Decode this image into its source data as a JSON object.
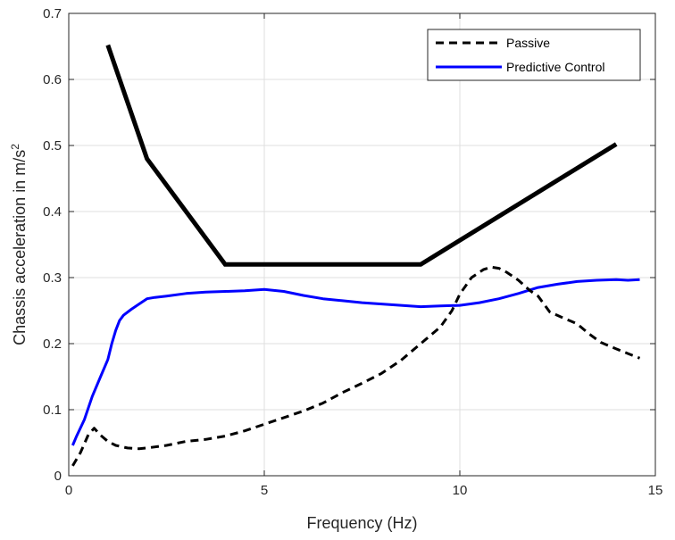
{
  "chart_data": {
    "type": "line",
    "xlabel": "Frequency (Hz)",
    "ylabel_main": "Chassis acceleration in m/s",
    "ylabel_sup": "2",
    "xlim": [
      0,
      15
    ],
    "ylim": [
      0,
      0.7
    ],
    "grid": true,
    "legend_position": "top-right",
    "xticks": [
      0,
      5,
      10,
      15
    ],
    "xtick_labels": [
      "0",
      "5",
      "10",
      "15"
    ],
    "yticks": [
      0,
      0.1,
      0.2,
      0.3,
      0.4,
      0.5,
      0.6,
      0.7
    ],
    "ytick_labels": [
      "0",
      "0.1",
      "0.2",
      "0.3",
      "0.4",
      "0.5",
      "0.6",
      "0.7"
    ],
    "limit_line": {
      "color": "#000000",
      "x": [
        1,
        2,
        4,
        9,
        14
      ],
      "y": [
        0.652,
        0.48,
        0.32,
        0.32,
        0.502
      ]
    },
    "series": [
      {
        "name": "Passive",
        "color": "#000000",
        "style": "dashed",
        "x": [
          0.1,
          0.3,
          0.5,
          0.65,
          0.8,
          1.0,
          1.2,
          1.5,
          1.8,
          2.0,
          2.5,
          3.0,
          3.5,
          4.0,
          4.5,
          5.0,
          5.5,
          6.0,
          6.5,
          7.0,
          7.5,
          8.0,
          8.5,
          9.0,
          9.5,
          9.8,
          10.0,
          10.3,
          10.6,
          10.8,
          11.0,
          11.2,
          11.5,
          11.8,
          12.0,
          12.3,
          12.6,
          13.0,
          13.3,
          13.6,
          14.0,
          14.3,
          14.6
        ],
        "y": [
          0.015,
          0.035,
          0.062,
          0.072,
          0.062,
          0.052,
          0.046,
          0.042,
          0.041,
          0.042,
          0.046,
          0.052,
          0.055,
          0.06,
          0.068,
          0.078,
          0.088,
          0.098,
          0.11,
          0.126,
          0.14,
          0.155,
          0.175,
          0.2,
          0.225,
          0.25,
          0.275,
          0.3,
          0.312,
          0.316,
          0.314,
          0.308,
          0.296,
          0.28,
          0.272,
          0.248,
          0.24,
          0.23,
          0.215,
          0.202,
          0.192,
          0.185,
          0.178
        ]
      },
      {
        "name": "Predictive Control",
        "color": "#0000ff",
        "style": "solid",
        "x": [
          0.1,
          0.2,
          0.4,
          0.6,
          0.8,
          1.0,
          1.1,
          1.2,
          1.3,
          1.4,
          1.6,
          1.8,
          2.0,
          2.2,
          2.5,
          3.0,
          3.5,
          4.0,
          4.5,
          5.0,
          5.5,
          6.0,
          6.5,
          7.0,
          7.5,
          8.0,
          8.5,
          9.0,
          9.5,
          10.0,
          10.5,
          11.0,
          11.5,
          12.0,
          12.5,
          13.0,
          13.5,
          14.0,
          14.3,
          14.6
        ],
        "y": [
          0.046,
          0.06,
          0.085,
          0.12,
          0.148,
          0.176,
          0.2,
          0.22,
          0.235,
          0.243,
          0.252,
          0.26,
          0.268,
          0.27,
          0.272,
          0.276,
          0.278,
          0.279,
          0.28,
          0.282,
          0.279,
          0.273,
          0.268,
          0.265,
          0.262,
          0.26,
          0.258,
          0.256,
          0.257,
          0.258,
          0.262,
          0.268,
          0.276,
          0.285,
          0.29,
          0.294,
          0.296,
          0.297,
          0.296,
          0.297
        ]
      }
    ]
  }
}
